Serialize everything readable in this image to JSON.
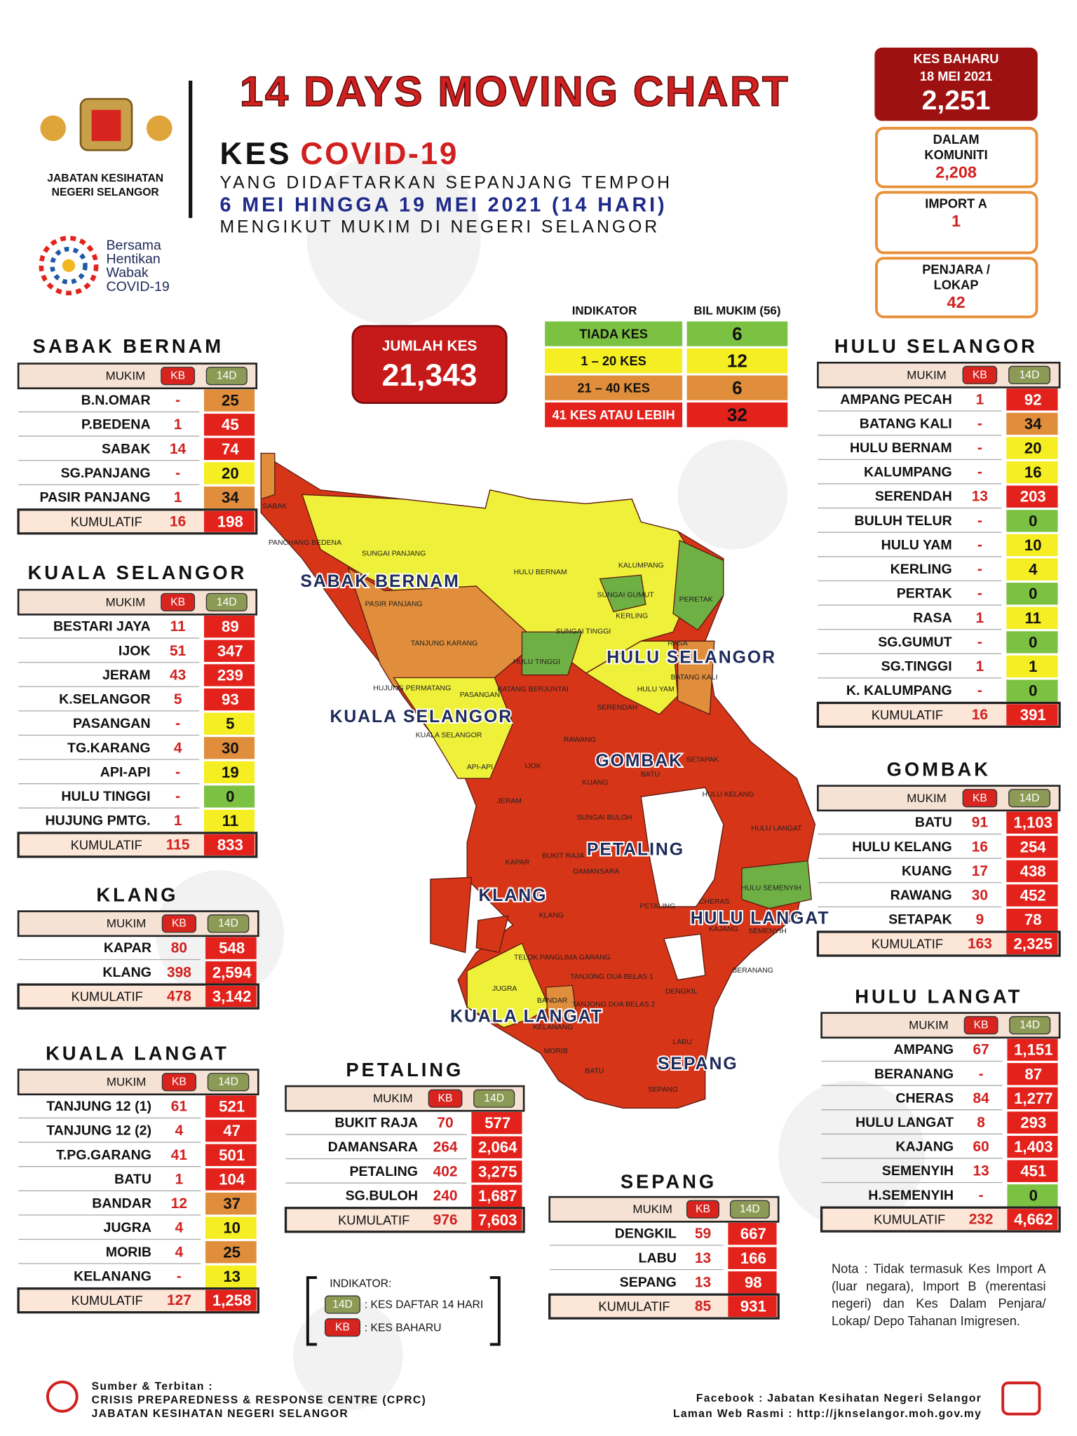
{
  "header": {
    "title": "14 DAYS MOVING CHART",
    "kes": "KES",
    "covid": "COVID-19",
    "line1": "YANG DIDAFTARKAN SEPANJANG TEMPOH",
    "line2": "6 MEI HINGGA 19 MEI 2021 (14 HARI)",
    "line3": "MENGIKUT MUKIM DI NEGERI SELANGOR",
    "agency": [
      "JABATAN KESIHATAN",
      "NEGERI SELANGOR"
    ],
    "campaign": [
      "Bersama",
      "Hentikan",
      "Wabak",
      "COVID-19"
    ]
  },
  "summary": {
    "new_cases": {
      "label": "KES BAHARU",
      "date": "18 MEI 2021",
      "value": "2,251"
    },
    "community": {
      "label": [
        "DALAM",
        "KOMUNITI"
      ],
      "value": "2,208"
    },
    "import_a": {
      "label": [
        "IMPORT A"
      ],
      "value": "1"
    },
    "prison": {
      "label": [
        "PENJARA /",
        "LOKAP"
      ],
      "value": "42"
    },
    "total": {
      "label": "JUMLAH KES",
      "value": "21,343"
    }
  },
  "indicator": {
    "headers": [
      "INDIKATOR",
      "BIL MUKIM (56)"
    ],
    "rows": [
      {
        "label": "TIADA KES",
        "value": "6",
        "color": "#7cc242"
      },
      {
        "label": "1 – 20 KES",
        "value": "12",
        "color": "#f4ee22"
      },
      {
        "label": "21 – 40 KES",
        "value": "6",
        "color": "#e08e3c"
      },
      {
        "label": "41 KES ATAU LEBIH",
        "value": "32",
        "color": "#e3221c"
      }
    ]
  },
  "table_headers": {
    "mukim": "MUKIM",
    "kb": "KB",
    "d14": "14D"
  },
  "districts": [
    {
      "name": "SABAK BERNAM",
      "rows": [
        [
          "B.N.OMAR",
          "-",
          "25",
          "#e08e3c"
        ],
        [
          "P.BEDENA",
          "1",
          "45",
          "#e3221c"
        ],
        [
          "SABAK",
          "14",
          "74",
          "#e3221c"
        ],
        [
          "SG.PANJANG",
          "-",
          "20",
          "#f4ee22"
        ],
        [
          "PASIR PANJANG",
          "1",
          "34",
          "#e08e3c"
        ]
      ],
      "total": {
        "label": "KUMULATIF",
        "kb": "16",
        "d14": "198"
      }
    },
    {
      "name": "KUALA SELANGOR",
      "rows": [
        [
          "BESTARI JAYA",
          "11",
          "89",
          "#e3221c"
        ],
        [
          "IJOK",
          "51",
          "347",
          "#e3221c"
        ],
        [
          "JERAM",
          "43",
          "239",
          "#e3221c"
        ],
        [
          "K.SELANGOR",
          "5",
          "93",
          "#e3221c"
        ],
        [
          "PASANGAN",
          "-",
          "5",
          "#f4ee22"
        ],
        [
          "TG.KARANG",
          "4",
          "30",
          "#e08e3c"
        ],
        [
          "API-API",
          "-",
          "19",
          "#f4ee22"
        ],
        [
          "HULU TINGGI",
          "-",
          "0",
          "#7cc242"
        ],
        [
          "HUJUNG PMTG.",
          "1",
          "11",
          "#f4ee22"
        ]
      ],
      "total": {
        "label": "KUMULATIF",
        "kb": "115",
        "d14": "833"
      }
    },
    {
      "name": "KLANG",
      "rows": [
        [
          "KAPAR",
          "80",
          "548",
          "#e3221c"
        ],
        [
          "KLANG",
          "398",
          "2,594",
          "#e3221c"
        ]
      ],
      "total": {
        "label": "KUMULATIF",
        "kb": "478",
        "d14": "3,142"
      }
    },
    {
      "name": "KUALA LANGAT",
      "rows": [
        [
          "TANJUNG 12 (1)",
          "61",
          "521",
          "#e3221c"
        ],
        [
          "TANJUNG 12 (2)",
          "4",
          "47",
          "#e3221c"
        ],
        [
          "T.PG.GARANG",
          "41",
          "501",
          "#e3221c"
        ],
        [
          "BATU",
          "1",
          "104",
          "#e3221c"
        ],
        [
          "BANDAR",
          "12",
          "37",
          "#e08e3c"
        ],
        [
          "JUGRA",
          "4",
          "10",
          "#f4ee22"
        ],
        [
          "MORIB",
          "4",
          "25",
          "#e08e3c"
        ],
        [
          "KELANANG",
          "-",
          "13",
          "#f4ee22"
        ]
      ],
      "total": {
        "label": "KUMULATIF",
        "kb": "127",
        "d14": "1,258"
      }
    },
    {
      "name": "PETALING",
      "rows": [
        [
          "BUKIT RAJA",
          "70",
          "577",
          "#e3221c"
        ],
        [
          "DAMANSARA",
          "264",
          "2,064",
          "#e3221c"
        ],
        [
          "PETALING",
          "402",
          "3,275",
          "#e3221c"
        ],
        [
          "SG.BULOH",
          "240",
          "1,687",
          "#e3221c"
        ]
      ],
      "total": {
        "label": "KUMULATIF",
        "kb": "976",
        "d14": "7,603"
      }
    },
    {
      "name": "SEPANG",
      "rows": [
        [
          "DENGKIL",
          "59",
          "667",
          "#e3221c"
        ],
        [
          "LABU",
          "13",
          "166",
          "#e3221c"
        ],
        [
          "SEPANG",
          "13",
          "98",
          "#e3221c"
        ]
      ],
      "total": {
        "label": "KUMULATIF",
        "kb": "85",
        "d14": "931"
      }
    },
    {
      "name": "HULU SELANGOR",
      "rows": [
        [
          "AMPANG PECAH",
          "1",
          "92",
          "#e3221c"
        ],
        [
          "BATANG KALI",
          "-",
          "34",
          "#e08e3c"
        ],
        [
          "HULU BERNAM",
          "-",
          "20",
          "#f4ee22"
        ],
        [
          "KALUMPANG",
          "-",
          "16",
          "#f4ee22"
        ],
        [
          "SERENDAH",
          "13",
          "203",
          "#e3221c"
        ],
        [
          "BULUH TELUR",
          "-",
          "0",
          "#7cc242"
        ],
        [
          "HULU YAM",
          "-",
          "10",
          "#f4ee22"
        ],
        [
          "KERLING",
          "-",
          "4",
          "#f4ee22"
        ],
        [
          "PERTAK",
          "-",
          "0",
          "#7cc242"
        ],
        [
          "RASA",
          "1",
          "11",
          "#f4ee22"
        ],
        [
          "SG.GUMUT",
          "-",
          "0",
          "#7cc242"
        ],
        [
          "SG.TINGGI",
          "1",
          "1",
          "#f4ee22"
        ],
        [
          "K. KALUMPANG",
          "-",
          "0",
          "#7cc242"
        ]
      ],
      "total": {
        "label": "KUMULATIF",
        "kb": "16",
        "d14": "391"
      }
    },
    {
      "name": "GOMBAK",
      "rows": [
        [
          "BATU",
          "91",
          "1,103",
          "#e3221c"
        ],
        [
          "HULU KELANG",
          "16",
          "254",
          "#e3221c"
        ],
        [
          "KUANG",
          "17",
          "438",
          "#e3221c"
        ],
        [
          "RAWANG",
          "30",
          "452",
          "#e3221c"
        ],
        [
          "SETAPAK",
          "9",
          "78",
          "#e3221c"
        ]
      ],
      "total": {
        "label": "KUMULATIF",
        "kb": "163",
        "d14": "2,325"
      }
    },
    {
      "name": "HULU LANGAT",
      "rows": [
        [
          "AMPANG",
          "67",
          "1,151",
          "#e3221c"
        ],
        [
          "BERANANG",
          "-",
          "87",
          "#e3221c"
        ],
        [
          "CHERAS",
          "84",
          "1,277",
          "#e3221c"
        ],
        [
          "HULU LANGAT",
          "8",
          "293",
          "#e3221c"
        ],
        [
          "KAJANG",
          "60",
          "1,403",
          "#e3221c"
        ],
        [
          "SEMENYIH",
          "13",
          "451",
          "#e3221c"
        ],
        [
          "H.SEMENYIH",
          "-",
          "0",
          "#7cc242"
        ]
      ],
      "total": {
        "label": "KUMULATIF",
        "kb": "232",
        "d14": "4,662"
      }
    }
  ],
  "map": {
    "districts": [
      "SABAK BERNAM",
      "HULU SELANGOR",
      "KUALA SELANGOR",
      "GOMBAK",
      "PETALING",
      "KLANG",
      "HULU LANGAT",
      "KUALA LANGAT",
      "SEPANG"
    ],
    "mukims": [
      "SABAK",
      "PANCHANG BEDENA",
      "SUNGAI PANJANG",
      "PASIR PANJANG",
      "TANJUNG KARANG",
      "HULU BERNAM",
      "KALUMPANG",
      "SUNGAI GUMUT",
      "SUNGAI TINGGI",
      "KERLING",
      "PERETAK",
      "RASA",
      "HULU TINGGI",
      "BATANG KALI",
      "HULU YAM",
      "HUJUNG PERMATANG",
      "PASANGAN",
      "BATANG BERJUNTAI",
      "SERENDAH",
      "KUALA SELANGOR",
      "RAWANG",
      "API-API",
      "IJOK",
      "SETAPAK",
      "KUANG",
      "BATU",
      "HULU KELANG",
      "JERAM",
      "SUNGAI BULOH",
      "HULU LANGAT",
      "KAPAR",
      "BUKIT RAJA",
      "DAMANSARA",
      "HULU SEMENYIH",
      "CHERAS",
      "PETALING",
      "KAJANG",
      "SEMENYIH",
      "KLANG",
      "TELOK PANGLIMA GARANG",
      "TANJONG DUA BELAS 1",
      "TANJONG DUA BELAS 2",
      "BERANANG",
      "DENGKIL",
      "JUGRA",
      "BANDAR",
      "KELANANG",
      "MORIB",
      "LABU",
      "BATU",
      "SEPANG"
    ]
  },
  "legend": {
    "title": "INDIKATOR:",
    "d14_text": ": KES DAFTAR 14 HARI",
    "kb_text": ": KES BAHARU"
  },
  "note": "Nota : Tidak termasuk Kes Import A (luar negara), Import B (merentasi negeri) dan Kes Dalam Penjara/ Lokap/ Depo Tahanan Imigresen.",
  "footer": {
    "source": [
      "Sumber & Terbitan :",
      "CRISIS PREPAREDNESS & RESPONSE CENTRE (CPRC)",
      "JABATAN KESIHATAN NEGERI SELANGOR"
    ],
    "links": [
      "Facebook : Jabatan Kesihatan Negeri Selangor",
      "Laman Web Rasmi : http://jknselangor.moh.gov.my"
    ]
  }
}
